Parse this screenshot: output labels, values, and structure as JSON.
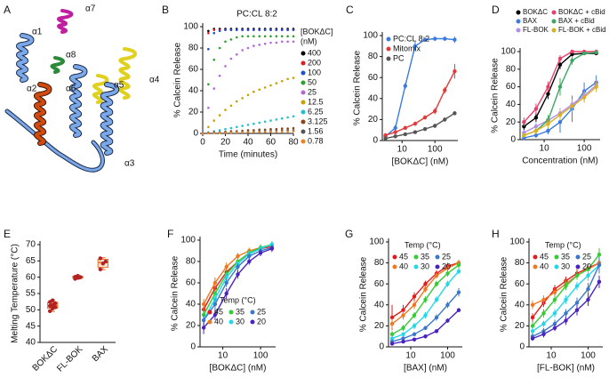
{
  "structure": {
    "panel": "A",
    "helix_labels": [
      "α1",
      "α7",
      "α8",
      "α2",
      "α6",
      "α5",
      "α4",
      "α3"
    ]
  },
  "chart_data": [
    {
      "panel": "B",
      "type": "scatter",
      "title": "PC:CL 8:2",
      "xlabel": "Time (minutes)",
      "ylabel": "% Calcein Release",
      "legend": "right",
      "legend_title": [
        "[BOKΔC]",
        "(nM)"
      ],
      "x": [
        0,
        5,
        10,
        15,
        20,
        25,
        30,
        35,
        40,
        45,
        50,
        55,
        60,
        65,
        70,
        75,
        80
      ],
      "xlim": [
        0,
        80
      ],
      "xticks": [
        0,
        20,
        40,
        60,
        80
      ],
      "ylim": [
        0,
        100
      ],
      "yticks": [
        0,
        20,
        40,
        60,
        80,
        100
      ],
      "series": [
        {
          "name": "400",
          "color": "#000000",
          "values": [
            0,
            96,
            98,
            98,
            98,
            98,
            98,
            98,
            98,
            98,
            98,
            98,
            98,
            98,
            98,
            98,
            98
          ]
        },
        {
          "name": "200",
          "color": "#e41a1c",
          "values": [
            0,
            94,
            97,
            97,
            97,
            97,
            97,
            97,
            97,
            97,
            97,
            97,
            97,
            97,
            97,
            97,
            97
          ]
        },
        {
          "name": "100",
          "color": "#1f4ed8",
          "values": [
            0,
            79,
            94,
            96,
            97,
            97,
            97,
            97,
            97,
            97,
            97,
            97,
            97,
            97,
            97,
            97,
            97
          ]
        },
        {
          "name": "50",
          "color": "#2ca02c",
          "values": [
            0,
            46,
            69,
            80,
            86,
            88,
            90,
            91,
            91,
            91,
            91,
            91,
            91,
            91,
            91,
            91,
            91
          ]
        },
        {
          "name": "25",
          "color": "#b266e0",
          "values": [
            0,
            24,
            42,
            54,
            63,
            70,
            74,
            78,
            80,
            82,
            83,
            84,
            85,
            85,
            86,
            86,
            86
          ]
        },
        {
          "name": "12.5",
          "color": "#c8a000",
          "values": [
            0,
            6,
            12,
            17,
            22,
            26,
            30,
            33,
            36,
            39,
            41,
            43,
            45,
            47,
            49,
            51,
            52
          ]
        },
        {
          "name": "6.25",
          "color": "#20c0d0",
          "values": [
            0,
            1,
            2,
            3,
            4,
            5,
            6,
            7,
            8,
            9,
            10,
            11,
            12,
            13,
            14,
            15,
            16
          ]
        },
        {
          "name": "3.125",
          "color": "#8b4513",
          "values": [
            0,
            0.5,
            1,
            1,
            1.5,
            2,
            2,
            2.5,
            3,
            3,
            3.5,
            3.5,
            4,
            4,
            4.5,
            4.5,
            5
          ]
        },
        {
          "name": "1.56",
          "color": "#555555",
          "values": [
            0,
            0.3,
            0.5,
            0.8,
            1,
            1.2,
            1.4,
            1.6,
            1.8,
            2,
            2.1,
            2.3,
            2.5,
            2.6,
            2.8,
            3,
            3
          ]
        },
        {
          "name": "0.78",
          "color": "#f08020",
          "values": [
            0,
            0.2,
            0.3,
            0.5,
            0.6,
            0.8,
            0.9,
            1,
            1.1,
            1.2,
            1.3,
            1.4,
            1.5,
            1.6,
            1.7,
            1.8,
            2
          ]
        }
      ]
    },
    {
      "panel": "C",
      "type": "line",
      "log_x": true,
      "xlabel": "[BOKΔC] (nM)",
      "ylabel": "% Calcein Release",
      "legend": "upper left",
      "x": [
        3.125,
        6.25,
        12.5,
        25,
        50,
        100,
        200,
        400
      ],
      "xlim": [
        2.5,
        500
      ],
      "xticks": [
        10,
        100
      ],
      "ylim": [
        0,
        100
      ],
      "yticks": [
        0,
        20,
        40,
        60,
        80,
        100
      ],
      "series": [
        {
          "name": "PC:CL 8:2",
          "color": "#3b7be0",
          "values": [
            4,
            12,
            52,
            90,
            96,
            97,
            97,
            96
          ],
          "errors": [
            2,
            3,
            3,
            4,
            2,
            2,
            2,
            3
          ]
        },
        {
          "name": "Mitomix",
          "color": "#e03a3a",
          "values": [
            5,
            8,
            12,
            16,
            22,
            28,
            48,
            66
          ],
          "errors": [
            2,
            2,
            2,
            2,
            2,
            3,
            3,
            7
          ]
        },
        {
          "name": "PC",
          "color": "#555555",
          "values": [
            2,
            4,
            6,
            8,
            11,
            14,
            20,
            26
          ],
          "errors": [
            1,
            1,
            1,
            1,
            1,
            2,
            2,
            2
          ]
        }
      ]
    },
    {
      "panel": "D",
      "type": "line",
      "log_x": true,
      "xlabel": "Concentration (nM)",
      "ylabel": "% Calcein Release",
      "legend": "top",
      "x": [
        3.125,
        6.25,
        12.5,
        25,
        50,
        100,
        200
      ],
      "xlim": [
        2.5,
        250
      ],
      "xticks": [
        10,
        100
      ],
      "ylim": [
        0,
        100
      ],
      "yticks": [
        0,
        20,
        40,
        60,
        80,
        100
      ],
      "series": [
        {
          "name": "BOKΔC",
          "color": "#000000",
          "values": [
            15,
            25,
            52,
            85,
            97,
            98,
            98
          ],
          "errors": [
            4,
            5,
            6,
            5,
            3,
            2,
            2
          ]
        },
        {
          "name": "BAX",
          "color": "#3b7be0",
          "values": [
            2,
            5,
            10,
            20,
            35,
            55,
            65
          ],
          "errors": [
            2,
            3,
            4,
            12,
            15,
            10,
            8
          ]
        },
        {
          "name": "FL-BOK",
          "color": "#b48cf0",
          "values": [
            8,
            15,
            22,
            30,
            40,
            50,
            62
          ],
          "errors": [
            3,
            4,
            5,
            6,
            6,
            6,
            6
          ]
        },
        {
          "name": "BOKΔC + cBid",
          "color": "#e8406a",
          "values": [
            20,
            35,
            60,
            92,
            100,
            100,
            100
          ],
          "errors": [
            5,
            6,
            6,
            4,
            2,
            2,
            2
          ]
        },
        {
          "name": "BAX + cBid",
          "color": "#3aa860",
          "values": [
            5,
            10,
            22,
            60,
            90,
            98,
            99
          ],
          "errors": [
            3,
            4,
            6,
            10,
            5,
            2,
            2
          ]
        },
        {
          "name": "FL-BOK + cBid",
          "color": "#d8b020",
          "values": [
            5,
            10,
            18,
            28,
            38,
            48,
            60
          ],
          "errors": [
            3,
            4,
            5,
            6,
            6,
            6,
            6
          ]
        }
      ]
    },
    {
      "panel": "E",
      "type": "box",
      "ylabel": "Melting Temperature (°C)",
      "categories": [
        "BOKΔC",
        "FL-BOK",
        "BAX"
      ],
      "color": "#e8732a",
      "point_color": "#b22222",
      "ylim": [
        40,
        70
      ],
      "yticks": [
        40,
        45,
        50,
        55,
        60,
        65,
        70
      ],
      "min": [
        49.5,
        59.4,
        62.3
      ],
      "q1": [
        50.5,
        59.7,
        63
      ],
      "median": [
        51.3,
        60,
        64.5
      ],
      "q3": [
        52.3,
        60.3,
        65.5
      ],
      "max": [
        53,
        60.6,
        66
      ],
      "points": [
        [
          49.6,
          50.4,
          50.8,
          51.2,
          51.5,
          52,
          52.4,
          52.9
        ],
        [
          59.5,
          59.8,
          60,
          60.1,
          60.4
        ],
        [
          62.4,
          64.2,
          64.8,
          65.8
        ]
      ]
    },
    {
      "panel": "F",
      "type": "line",
      "log_x": true,
      "xlabel": "[BOKΔC] (nM)",
      "ylabel": "% Calcein Release",
      "legend": "lower right",
      "legend_title": [
        "Temp (°C)"
      ],
      "x": [
        3.125,
        6.25,
        12.5,
        25,
        50,
        100,
        200
      ],
      "xlim": [
        2.5,
        250
      ],
      "xticks": [
        10,
        100
      ],
      "ylim": [
        0,
        100
      ],
      "yticks": [
        0,
        20,
        40,
        60,
        80,
        100
      ],
      "series": [
        {
          "name": "45",
          "color": "#e41a1c",
          "values": [
            35,
            55,
            70,
            80,
            88,
            92,
            94
          ],
          "errors": [
            5,
            5,
            4,
            3,
            3,
            3,
            3
          ]
        },
        {
          "name": "40",
          "color": "#f07820",
          "values": [
            40,
            60,
            75,
            85,
            90,
            93,
            95
          ],
          "errors": [
            5,
            5,
            4,
            3,
            3,
            3,
            3
          ]
        },
        {
          "name": "35",
          "color": "#33cc33",
          "values": [
            30,
            50,
            68,
            80,
            88,
            93,
            96
          ],
          "errors": [
            5,
            5,
            4,
            3,
            3,
            3,
            3
          ]
        },
        {
          "name": "30",
          "color": "#22d8e8",
          "values": [
            25,
            45,
            65,
            78,
            87,
            92,
            96
          ],
          "errors": [
            5,
            5,
            4,
            3,
            3,
            3,
            3
          ]
        },
        {
          "name": "25",
          "color": "#3a78c8",
          "values": [
            25,
            40,
            60,
            75,
            85,
            90,
            93
          ],
          "errors": [
            5,
            5,
            4,
            3,
            3,
            3,
            3
          ]
        },
        {
          "name": "20",
          "color": "#4a22c0",
          "values": [
            18,
            30,
            50,
            68,
            80,
            88,
            92
          ],
          "errors": [
            6,
            5,
            5,
            4,
            3,
            3,
            3
          ]
        }
      ]
    },
    {
      "panel": "G",
      "type": "line",
      "log_x": true,
      "xlabel": "[BAX] (nM)",
      "ylabel": "% Calcein Release",
      "legend": "upper left",
      "legend_title": [
        "Temp (°C)"
      ],
      "x": [
        3.125,
        6.25,
        12.5,
        25,
        50,
        100,
        200
      ],
      "xlim": [
        2.5,
        250
      ],
      "xticks": [
        10,
        100
      ],
      "ylim": [
        0,
        100
      ],
      "yticks": [
        0,
        20,
        40,
        60,
        80,
        100
      ],
      "series": [
        {
          "name": "45",
          "color": "#e41a1c",
          "values": [
            28,
            35,
            48,
            60,
            70,
            77,
            80
          ],
          "errors": [
            12,
            5,
            4,
            3,
            3,
            3,
            3
          ]
        },
        {
          "name": "40",
          "color": "#f07820",
          "values": [
            22,
            30,
            40,
            55,
            68,
            75,
            80
          ],
          "errors": [
            5,
            4,
            4,
            3,
            3,
            3,
            3
          ]
        },
        {
          "name": "35",
          "color": "#33cc33",
          "values": [
            12,
            18,
            30,
            45,
            60,
            70,
            78
          ],
          "errors": [
            3,
            3,
            3,
            3,
            3,
            3,
            3
          ]
        },
        {
          "name": "30",
          "color": "#22d8e8",
          "values": [
            8,
            12,
            20,
            30,
            45,
            60,
            72
          ],
          "errors": [
            2,
            2,
            3,
            3,
            3,
            3,
            3
          ]
        },
        {
          "name": "25",
          "color": "#3a78c8",
          "values": [
            5,
            8,
            12,
            18,
            28,
            40,
            52
          ],
          "errors": [
            2,
            2,
            2,
            2,
            3,
            3,
            4
          ]
        },
        {
          "name": "20",
          "color": "#4a22c0",
          "values": [
            3,
            5,
            7,
            10,
            15,
            25,
            35
          ],
          "errors": [
            1,
            1,
            1,
            2,
            2,
            2,
            2
          ]
        }
      ]
    },
    {
      "panel": "H",
      "type": "line",
      "log_x": true,
      "xlabel": "[FL-BOK] (nM)",
      "ylabel": "% Calcein Release",
      "legend": "upper left",
      "legend_title": [
        "Temp (°C)"
      ],
      "x": [
        3.125,
        6.25,
        12.5,
        25,
        50,
        100,
        200
      ],
      "xlim": [
        2.5,
        250
      ],
      "xticks": [
        10,
        100
      ],
      "ylim": [
        0,
        100
      ],
      "yticks": [
        0,
        20,
        40,
        60,
        80,
        100
      ],
      "series": [
        {
          "name": "45",
          "color": "#e41a1c",
          "values": [
            28,
            42,
            55,
            63,
            70,
            75,
            80
          ],
          "errors": [
            4,
            4,
            4,
            4,
            4,
            4,
            5
          ]
        },
        {
          "name": "40",
          "color": "#f07820",
          "values": [
            40,
            45,
            52,
            60,
            68,
            74,
            80
          ],
          "errors": [
            4,
            4,
            4,
            4,
            4,
            4,
            5
          ]
        },
        {
          "name": "35",
          "color": "#33cc33",
          "values": [
            20,
            32,
            45,
            58,
            68,
            74,
            88
          ],
          "errors": [
            4,
            4,
            4,
            4,
            4,
            4,
            6
          ]
        },
        {
          "name": "30",
          "color": "#22d8e8",
          "values": [
            15,
            22,
            32,
            45,
            58,
            68,
            78
          ],
          "errors": [
            3,
            3,
            4,
            4,
            4,
            5,
            5
          ]
        },
        {
          "name": "25",
          "color": "#3a78c8",
          "values": [
            10,
            15,
            22,
            32,
            42,
            55,
            78
          ],
          "errors": [
            3,
            3,
            4,
            4,
            5,
            6,
            8
          ]
        },
        {
          "name": "20",
          "color": "#4a22c0",
          "values": [
            8,
            12,
            18,
            25,
            35,
            45,
            62
          ],
          "errors": [
            2,
            3,
            3,
            4,
            5,
            6,
            6
          ]
        }
      ]
    }
  ]
}
